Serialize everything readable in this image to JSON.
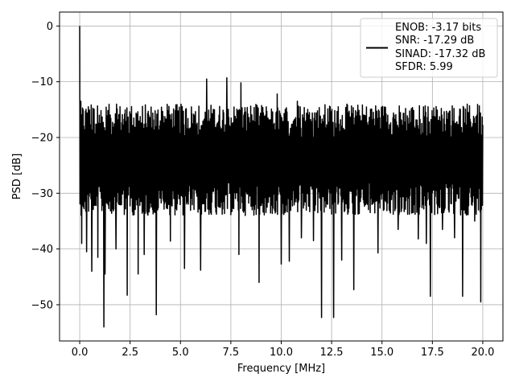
{
  "chart_data": {
    "type": "line",
    "title": "",
    "xlabel": "Frequency [MHz]",
    "ylabel": "PSD [dB]",
    "xlim": [
      -1.0,
      21.0
    ],
    "ylim": [
      -56.5,
      2.5
    ],
    "xticks": [
      0.0,
      2.5,
      5.0,
      7.5,
      10.0,
      12.5,
      15.0,
      17.5,
      20.0
    ],
    "xtick_labels": [
      "0.0",
      "2.5",
      "5.0",
      "7.5",
      "10.0",
      "12.5",
      "15.0",
      "17.5",
      "20.0"
    ],
    "yticks": [
      0,
      -10,
      -20,
      -30,
      -40,
      -50
    ],
    "ytick_labels": [
      "0",
      "−10",
      "−20",
      "−30",
      "−40",
      "−50"
    ],
    "grid": true,
    "legend": {
      "placement": "top-right",
      "entries": [
        "ENOB: -3.17 bits",
        "SNR: -17.29 dB",
        "SINAD: -17.32 dB",
        "SFDR: 5.99"
      ]
    },
    "series": [
      {
        "color": "#000000",
        "noise_floor_db": [
          -18,
          -30
        ],
        "spectrum_range_mhz": [
          0,
          20
        ],
        "peak": {
          "x": 0.0,
          "y": 0.0
        },
        "spikes": [
          {
            "x": 0.05,
            "y": -13.5
          },
          {
            "x": 0.1,
            "y": -39
          },
          {
            "x": 0.35,
            "y": -40.5
          },
          {
            "x": 0.6,
            "y": -44
          },
          {
            "x": 0.9,
            "y": -41.5
          },
          {
            "x": 1.2,
            "y": -54
          },
          {
            "x": 1.25,
            "y": -44.5
          },
          {
            "x": 1.8,
            "y": -40
          },
          {
            "x": 2.35,
            "y": -48.3
          },
          {
            "x": 2.9,
            "y": -44.5
          },
          {
            "x": 3.2,
            "y": -41
          },
          {
            "x": 3.8,
            "y": -51.8
          },
          {
            "x": 4.5,
            "y": -38.6
          },
          {
            "x": 5.2,
            "y": -43.5
          },
          {
            "x": 6.0,
            "y": -43.8
          },
          {
            "x": 6.3,
            "y": -9.5
          },
          {
            "x": 7.3,
            "y": -9.3
          },
          {
            "x": 7.9,
            "y": -41
          },
          {
            "x": 8.0,
            "y": -10.2
          },
          {
            "x": 8.9,
            "y": -46
          },
          {
            "x": 9.8,
            "y": -12.2
          },
          {
            "x": 10.0,
            "y": -42.7
          },
          {
            "x": 10.4,
            "y": -42.2
          },
          {
            "x": 10.8,
            "y": -13.5
          },
          {
            "x": 11.0,
            "y": -38
          },
          {
            "x": 11.6,
            "y": -38.5
          },
          {
            "x": 12.0,
            "y": -52.3
          },
          {
            "x": 12.6,
            "y": -52.3
          },
          {
            "x": 13.0,
            "y": -42
          },
          {
            "x": 13.6,
            "y": -47.3
          },
          {
            "x": 14.8,
            "y": -40.7
          },
          {
            "x": 15.8,
            "y": -36.5
          },
          {
            "x": 16.8,
            "y": -38.2
          },
          {
            "x": 17.2,
            "y": -39
          },
          {
            "x": 17.4,
            "y": -48.5
          },
          {
            "x": 18.0,
            "y": -36.5
          },
          {
            "x": 18.6,
            "y": -38
          },
          {
            "x": 19.0,
            "y": -48.5
          },
          {
            "x": 19.6,
            "y": -35
          },
          {
            "x": 19.9,
            "y": -49.5
          }
        ]
      }
    ]
  }
}
